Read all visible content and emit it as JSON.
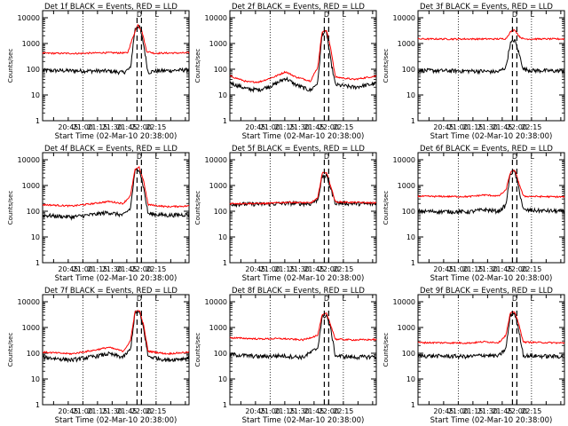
{
  "figure": {
    "xlabel": "Start Time (02-Mar-10 20:38:00)",
    "ylabel": "Counts/sec"
  },
  "chart_data": [
    {
      "type": "line",
      "title": "Det 1f BLACK = Events, RED = LLD",
      "marker_labels": [
        "D",
        "L"
      ],
      "x_tick_labels": [
        "20:45",
        "21:00",
        "21:15",
        "21:30",
        "21:45",
        "22:00",
        "22:15"
      ],
      "y_tick_labels": [
        "1",
        "10",
        "100",
        "1000",
        "10000"
      ],
      "y_scale": "log",
      "ylim": [
        1,
        10000
      ],
      "xlabel": "Start Time (02-Mar-10 20:38:00)",
      "ylabel": "Counts/sec",
      "series": [
        {
          "color": "#000000",
          "knots": [
            [
              0,
              90
            ],
            [
              0.45,
              85
            ],
            [
              0.55,
              75
            ],
            [
              0.6,
              110
            ],
            [
              0.63,
              3500
            ],
            [
              0.66,
              5000
            ],
            [
              0.69,
              900
            ],
            [
              0.72,
              75
            ],
            [
              0.76,
              85
            ],
            [
              1,
              95
            ]
          ]
        },
        {
          "color": "#ff0000",
          "knots": [
            [
              0,
              420
            ],
            [
              0.25,
              410
            ],
            [
              0.42,
              440
            ],
            [
              0.58,
              430
            ],
            [
              0.62,
              2000
            ],
            [
              0.65,
              5500
            ],
            [
              0.68,
              2800
            ],
            [
              0.71,
              500
            ],
            [
              0.76,
              420
            ],
            [
              1,
              430
            ]
          ]
        }
      ]
    },
    {
      "type": "line",
      "title": "Det 2f BLACK = Events, RED = LLD",
      "marker_labels": [
        "D",
        "L"
      ],
      "x_tick_labels": [
        "20:45",
        "21:00",
        "21:15",
        "21:30",
        "21:45",
        "22:00",
        "22:15"
      ],
      "y_tick_labels": [
        "1",
        "10",
        "100",
        "1000",
        "10000"
      ],
      "y_scale": "log",
      "ylim": [
        1,
        10000
      ],
      "xlabel": "Start Time (02-Mar-10 20:38:00)",
      "ylabel": "Counts/sec",
      "series": [
        {
          "color": "#000000",
          "knots": [
            [
              0,
              30
            ],
            [
              0.12,
              17
            ],
            [
              0.2,
              16
            ],
            [
              0.3,
              25
            ],
            [
              0.38,
              45
            ],
            [
              0.45,
              25
            ],
            [
              0.55,
              15
            ],
            [
              0.6,
              30
            ],
            [
              0.63,
              2500
            ],
            [
              0.66,
              2800
            ],
            [
              0.69,
              200
            ],
            [
              0.72,
              25
            ],
            [
              0.85,
              20
            ],
            [
              1,
              28
            ]
          ]
        },
        {
          "color": "#ff0000",
          "knots": [
            [
              0,
              55
            ],
            [
              0.12,
              32
            ],
            [
              0.2,
              32
            ],
            [
              0.3,
              50
            ],
            [
              0.38,
              80
            ],
            [
              0.45,
              50
            ],
            [
              0.55,
              35
            ],
            [
              0.6,
              120
            ],
            [
              0.63,
              3000
            ],
            [
              0.66,
              3200
            ],
            [
              0.69,
              600
            ],
            [
              0.72,
              50
            ],
            [
              0.85,
              40
            ],
            [
              1,
              55
            ]
          ]
        }
      ]
    },
    {
      "type": "line",
      "title": "Det 3f BLACK = Events, RED = LLD",
      "marker_labels": [
        "D",
        "L"
      ],
      "x_tick_labels": [
        "20:45",
        "21:00",
        "21:15",
        "21:30",
        "21:45",
        "22:00",
        "22:15"
      ],
      "y_tick_labels": [
        "1",
        "10",
        "100",
        "1000",
        "10000"
      ],
      "y_scale": "log",
      "ylim": [
        1,
        10000
      ],
      "xlabel": "Start Time (02-Mar-10 20:38:00)",
      "ylabel": "Counts/sec",
      "series": [
        {
          "color": "#000000",
          "knots": [
            [
              0,
              90
            ],
            [
              0.4,
              85
            ],
            [
              0.55,
              80
            ],
            [
              0.6,
              120
            ],
            [
              0.63,
              1000
            ],
            [
              0.66,
              1400
            ],
            [
              0.69,
              400
            ],
            [
              0.72,
              100
            ],
            [
              0.78,
              90
            ],
            [
              1,
              85
            ]
          ]
        },
        {
          "color": "#ff0000",
          "knots": [
            [
              0,
              1500
            ],
            [
              0.55,
              1500
            ],
            [
              0.6,
              1550
            ],
            [
              0.63,
              2800
            ],
            [
              0.66,
              3500
            ],
            [
              0.69,
              1900
            ],
            [
              0.72,
              1500
            ],
            [
              1,
              1500
            ]
          ]
        }
      ]
    },
    {
      "type": "line",
      "title": "Det 4f BLACK = Events, RED = LLD",
      "marker_labels": [
        "D",
        "L"
      ],
      "x_tick_labels": [
        "20:45",
        "21:00",
        "21:15",
        "21:30",
        "21:45",
        "22:00",
        "22:15"
      ],
      "y_tick_labels": [
        "1",
        "10",
        "100",
        "1000",
        "10000"
      ],
      "y_scale": "log",
      "ylim": [
        1,
        10000
      ],
      "xlabel": "Start Time (02-Mar-10 20:38:00)",
      "ylabel": "Counts/sec",
      "series": [
        {
          "color": "#000000",
          "knots": [
            [
              0,
              70
            ],
            [
              0.2,
              60
            ],
            [
              0.35,
              75
            ],
            [
              0.45,
              90
            ],
            [
              0.55,
              70
            ],
            [
              0.6,
              130
            ],
            [
              0.63,
              3500
            ],
            [
              0.66,
              4500
            ],
            [
              0.69,
              800
            ],
            [
              0.72,
              80
            ],
            [
              0.85,
              70
            ],
            [
              1,
              75
            ]
          ]
        },
        {
          "color": "#ff0000",
          "knots": [
            [
              0,
              180
            ],
            [
              0.2,
              160
            ],
            [
              0.35,
              200
            ],
            [
              0.45,
              240
            ],
            [
              0.55,
              200
            ],
            [
              0.6,
              400
            ],
            [
              0.63,
              4000
            ],
            [
              0.66,
              5000
            ],
            [
              0.69,
              1500
            ],
            [
              0.72,
              180
            ],
            [
              0.85,
              150
            ],
            [
              1,
              160
            ]
          ]
        }
      ]
    },
    {
      "type": "line",
      "title": "Det 5f BLACK = Events, RED = LLD",
      "marker_labels": [
        "D",
        "L"
      ],
      "x_tick_labels": [
        "20:45",
        "21:00",
        "21:15",
        "21:30",
        "21:45",
        "22:00",
        "22:15"
      ],
      "y_tick_labels": [
        "1",
        "10",
        "100",
        "1000",
        "10000"
      ],
      "y_scale": "log",
      "ylim": [
        1,
        10000
      ],
      "xlabel": "Start Time (02-Mar-10 20:38:00)",
      "ylabel": "Counts/sec",
      "series": [
        {
          "color": "#000000",
          "knots": [
            [
              0,
              190
            ],
            [
              0.25,
              190
            ],
            [
              0.4,
              205
            ],
            [
              0.55,
              195
            ],
            [
              0.6,
              280
            ],
            [
              0.63,
              2200
            ],
            [
              0.66,
              2400
            ],
            [
              0.69,
              700
            ],
            [
              0.72,
              210
            ],
            [
              1,
              190
            ]
          ]
        },
        {
          "color": "#ff0000",
          "knots": [
            [
              0,
              200
            ],
            [
              0.25,
              200
            ],
            [
              0.4,
              225
            ],
            [
              0.55,
              210
            ],
            [
              0.6,
              320
            ],
            [
              0.63,
              3000
            ],
            [
              0.66,
              3300
            ],
            [
              0.69,
              900
            ],
            [
              0.72,
              230
            ],
            [
              1,
              210
            ]
          ]
        }
      ]
    },
    {
      "type": "line",
      "title": "Det 6f BLACK = Events, RED = LLD",
      "marker_labels": [
        "D",
        "L"
      ],
      "x_tick_labels": [
        "20:45",
        "21:00",
        "21:15",
        "21:30",
        "21:45",
        "22:00",
        "22:15"
      ],
      "y_tick_labels": [
        "1",
        "10",
        "100",
        "1000",
        "10000"
      ],
      "y_scale": "log",
      "ylim": [
        1,
        10000
      ],
      "xlabel": "Start Time (02-Mar-10 20:38:00)",
      "ylabel": "Counts/sec",
      "series": [
        {
          "color": "#000000",
          "knots": [
            [
              0,
              100
            ],
            [
              0.35,
              95
            ],
            [
              0.45,
              115
            ],
            [
              0.55,
              100
            ],
            [
              0.6,
              170
            ],
            [
              0.63,
              3000
            ],
            [
              0.66,
              3500
            ],
            [
              0.69,
              700
            ],
            [
              0.72,
              110
            ],
            [
              1,
              100
            ]
          ]
        },
        {
          "color": "#ff0000",
          "knots": [
            [
              0,
              380
            ],
            [
              0.35,
              370
            ],
            [
              0.45,
              430
            ],
            [
              0.55,
              390
            ],
            [
              0.6,
              650
            ],
            [
              0.63,
              3200
            ],
            [
              0.66,
              4000
            ],
            [
              0.69,
              1200
            ],
            [
              0.72,
              380
            ],
            [
              1,
              360
            ]
          ]
        }
      ]
    },
    {
      "type": "line",
      "title": "Det 7f BLACK = Events, RED = LLD",
      "marker_labels": [
        "D",
        "L"
      ],
      "x_tick_labels": [
        "20:45",
        "21:00",
        "21:15",
        "21:30",
        "21:45",
        "22:00",
        "22:15"
      ],
      "y_tick_labels": [
        "1",
        "10",
        "100",
        "1000",
        "10000"
      ],
      "y_scale": "log",
      "ylim": [
        1,
        10000
      ],
      "xlabel": "Start Time (02-Mar-10 20:38:00)",
      "ylabel": "Counts/sec",
      "series": [
        {
          "color": "#000000",
          "knots": [
            [
              0,
              70
            ],
            [
              0.2,
              55
            ],
            [
              0.35,
              75
            ],
            [
              0.45,
              95
            ],
            [
              0.55,
              70
            ],
            [
              0.6,
              140
            ],
            [
              0.63,
              3500
            ],
            [
              0.66,
              4000
            ],
            [
              0.69,
              900
            ],
            [
              0.72,
              75
            ],
            [
              0.85,
              55
            ],
            [
              1,
              65
            ]
          ]
        },
        {
          "color": "#ff0000",
          "knots": [
            [
              0,
              110
            ],
            [
              0.2,
              95
            ],
            [
              0.35,
              130
            ],
            [
              0.45,
              170
            ],
            [
              0.55,
              120
            ],
            [
              0.6,
              300
            ],
            [
              0.63,
              4000
            ],
            [
              0.66,
              4800
            ],
            [
              0.69,
              1200
            ],
            [
              0.72,
              120
            ],
            [
              0.85,
              95
            ],
            [
              1,
              110
            ]
          ]
        }
      ]
    },
    {
      "type": "line",
      "title": "Det 8f BLACK = Events, RED = LLD",
      "marker_labels": [
        "D",
        "L"
      ],
      "x_tick_labels": [
        "20:45",
        "21:00",
        "21:15",
        "21:30",
        "21:45",
        "22:00",
        "22:15"
      ],
      "y_tick_labels": [
        "1",
        "10",
        "100",
        "1000",
        "10000"
      ],
      "y_scale": "log",
      "ylim": [
        1,
        10000
      ],
      "xlabel": "Start Time (02-Mar-10 20:38:00)",
      "ylabel": "Counts/sec",
      "series": [
        {
          "color": "#000000",
          "knots": [
            [
              0,
              90
            ],
            [
              0.2,
              75
            ],
            [
              0.35,
              80
            ],
            [
              0.5,
              70
            ],
            [
              0.6,
              160
            ],
            [
              0.63,
              2500
            ],
            [
              0.66,
              3000
            ],
            [
              0.69,
              800
            ],
            [
              0.72,
              80
            ],
            [
              0.85,
              70
            ],
            [
              1,
              75
            ]
          ]
        },
        {
          "color": "#ff0000",
          "knots": [
            [
              0,
              400
            ],
            [
              0.2,
              360
            ],
            [
              0.35,
              370
            ],
            [
              0.5,
              330
            ],
            [
              0.6,
              500
            ],
            [
              0.63,
              3000
            ],
            [
              0.66,
              3500
            ],
            [
              0.69,
              1200
            ],
            [
              0.72,
              350
            ],
            [
              0.85,
              330
            ],
            [
              1,
              340
            ]
          ]
        }
      ]
    },
    {
      "type": "line",
      "title": "Det 9f BLACK = Events, RED = LLD",
      "marker_labels": [
        "D",
        "L"
      ],
      "x_tick_labels": [
        "20:45",
        "21:00",
        "21:15",
        "21:30",
        "21:45",
        "22:00",
        "22:15"
      ],
      "y_tick_labels": [
        "1",
        "10",
        "100",
        "1000",
        "10000"
      ],
      "y_scale": "log",
      "ylim": [
        1,
        10000
      ],
      "xlabel": "Start Time (02-Mar-10 20:38:00)",
      "ylabel": "Counts/sec",
      "series": [
        {
          "color": "#000000",
          "knots": [
            [
              0,
              80
            ],
            [
              0.35,
              75
            ],
            [
              0.45,
              85
            ],
            [
              0.55,
              78
            ],
            [
              0.6,
              150
            ],
            [
              0.63,
              3000
            ],
            [
              0.66,
              3600
            ],
            [
              0.69,
              700
            ],
            [
              0.72,
              80
            ],
            [
              1,
              75
            ]
          ]
        },
        {
          "color": "#ff0000",
          "knots": [
            [
              0,
              260
            ],
            [
              0.35,
              250
            ],
            [
              0.45,
              280
            ],
            [
              0.55,
              260
            ],
            [
              0.6,
              500
            ],
            [
              0.63,
              3500
            ],
            [
              0.66,
              4200
            ],
            [
              0.69,
              1200
            ],
            [
              0.72,
              270
            ],
            [
              1,
              250
            ]
          ]
        }
      ]
    }
  ]
}
